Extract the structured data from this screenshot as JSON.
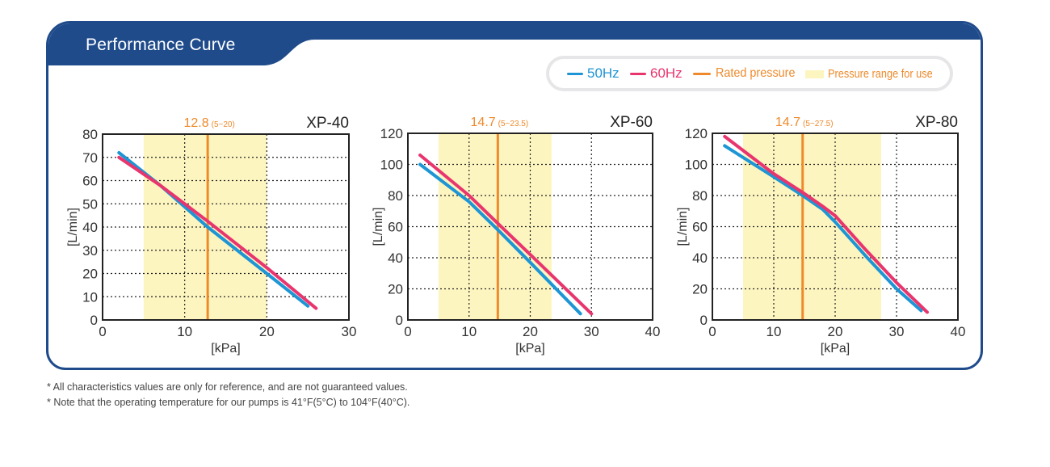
{
  "header": {
    "title": "Performance Curve"
  },
  "colors": {
    "brand": "#1f4b8b",
    "hz50": "#1e95d4",
    "hz60": "#e8356e",
    "rated": "#ee8a2b",
    "range": "#fdf5c0",
    "range_text": "#ee8a2b"
  },
  "legend": {
    "items": [
      {
        "key": "hz50",
        "label": "50Hz",
        "swatch": "line"
      },
      {
        "key": "hz60",
        "label": "60Hz",
        "swatch": "line"
      },
      {
        "key": "rated",
        "label": "Rated pressure",
        "swatch": "line"
      },
      {
        "key": "range",
        "label": "Pressure range for use",
        "swatch": "box"
      }
    ]
  },
  "chart_data": [
    {
      "type": "line",
      "title": "XP-40",
      "rated_label": "12.8",
      "range_label": "(5~20)",
      "xlabel": "[kPa]",
      "ylabel": "[L/min]",
      "xlim": [
        0,
        30
      ],
      "ylim": [
        0,
        80
      ],
      "xticks": [
        0,
        10,
        20,
        30
      ],
      "yticks": [
        0,
        10,
        20,
        30,
        40,
        50,
        60,
        70,
        80
      ],
      "grid": true,
      "rated_pressure": 12.8,
      "pressure_range": [
        5,
        20
      ],
      "series": [
        {
          "name": "50Hz",
          "color_key": "hz50",
          "points": [
            [
              2,
              72
            ],
            [
              7,
              58
            ],
            [
              12.8,
              40
            ],
            [
              20,
              20
            ],
            [
              25,
              6
            ]
          ]
        },
        {
          "name": "60Hz",
          "color_key": "hz60",
          "points": [
            [
              2,
              70
            ],
            [
              7,
              58
            ],
            [
              12.8,
              42.5
            ],
            [
              20,
              22.5
            ],
            [
              26,
              5
            ]
          ]
        }
      ]
    },
    {
      "type": "line",
      "title": "XP-60",
      "rated_label": "14.7",
      "range_label": "(5~23.5)",
      "xlabel": "[kPa]",
      "ylabel": "[L/min]",
      "xlim": [
        0,
        40
      ],
      "ylim": [
        0,
        120
      ],
      "xticks": [
        0,
        10,
        20,
        30,
        40
      ],
      "yticks": [
        0,
        20,
        40,
        60,
        80,
        100,
        120
      ],
      "grid": true,
      "rated_pressure": 14.7,
      "pressure_range": [
        5,
        23.5
      ],
      "series": [
        {
          "name": "50Hz",
          "color_key": "hz50",
          "points": [
            [
              2,
              100
            ],
            [
              10,
              76
            ],
            [
              14.7,
              58
            ],
            [
              20,
              37
            ],
            [
              28.2,
              4
            ]
          ]
        },
        {
          "name": "60Hz",
          "color_key": "hz60",
          "points": [
            [
              2,
              106
            ],
            [
              10,
              80
            ],
            [
              14.7,
              62
            ],
            [
              20,
              42
            ],
            [
              30,
              4
            ]
          ]
        }
      ]
    },
    {
      "type": "line",
      "title": "XP-80",
      "rated_label": "14.7",
      "range_label": "(5~27.5)",
      "xlabel": "[kPa]",
      "ylabel": "[L/min]",
      "xlim": [
        0,
        40
      ],
      "ylim": [
        0,
        120
      ],
      "xticks": [
        0,
        10,
        20,
        30,
        40
      ],
      "yticks": [
        0,
        20,
        40,
        60,
        80,
        100,
        120
      ],
      "grid": true,
      "rated_pressure": 14.7,
      "pressure_range": [
        5,
        27.5
      ],
      "series": [
        {
          "name": "50Hz",
          "color_key": "hz50",
          "points": [
            [
              2,
              112
            ],
            [
              10,
              92
            ],
            [
              14.7,
              80
            ],
            [
              18,
              71
            ],
            [
              20,
              63
            ],
            [
              25,
              41
            ],
            [
              30,
              20
            ],
            [
              34,
              6
            ]
          ]
        },
        {
          "name": "60Hz",
          "color_key": "hz60",
          "points": [
            [
              2,
              118
            ],
            [
              10,
              94
            ],
            [
              14.7,
              82
            ],
            [
              18,
              73
            ],
            [
              20,
              67
            ],
            [
              25,
              45
            ],
            [
              30,
              24
            ],
            [
              35,
              5
            ]
          ]
        }
      ]
    }
  ],
  "notes": [
    "* All characteristics values are only for reference, and are not guaranteed values.",
    "* Note that the operating temperature for our pumps is 41°F(5°C) to 104°F(40°C)."
  ]
}
